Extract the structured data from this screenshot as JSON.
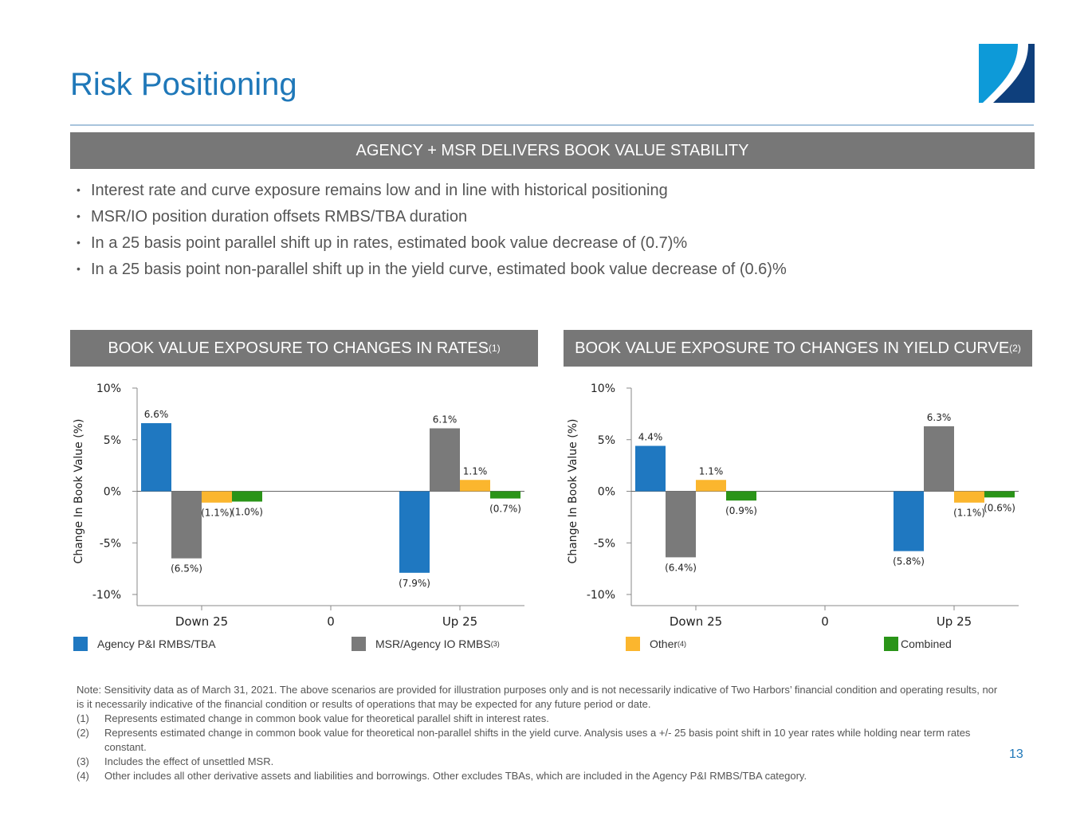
{
  "header": {
    "title": "Risk Positioning",
    "logo": "two-harbors-logo"
  },
  "banner": "AGENCY + MSR DELIVERS BOOK VALUE STABILITY",
  "bullets": [
    "Interest rate and curve exposure remains low and in line with historical positioning",
    "MSR/IO position duration offsets RMBS/TBA duration",
    "In a 25 basis point parallel shift up in rates, estimated book value decrease of (0.7)%",
    "In a 25 basis point non-parallel shift up in the yield curve, estimated book value decrease of (0.6)%"
  ],
  "legend": [
    {
      "label": "Agency P&I RMBS/TBA",
      "sup": "",
      "color": "#1f78c1"
    },
    {
      "label": "MSR/Agency IO RMBS",
      "sup": "(3)",
      "color": "#7a7a7a"
    },
    {
      "label": "Other",
      "sup": "(4)",
      "color": "#fbb62e"
    },
    {
      "label": "Combined",
      "sup": "",
      "color": "#2a9418"
    }
  ],
  "chart_data": [
    {
      "type": "bar",
      "title": "BOOK VALUE EXPOSURE TO CHANGES IN RATES",
      "title_sup": "(1)",
      "categories": [
        "Down 25",
        "0",
        "Up 25"
      ],
      "ylabel": "Change In Book Value (%)",
      "ylim": [
        -10,
        10
      ],
      "yticks": [
        "10%",
        "5%",
        "0%",
        "-5%",
        "-10%"
      ],
      "series": [
        {
          "name": "Agency P&I RMBS/TBA",
          "values": [
            6.6,
            null,
            -7.9
          ],
          "labels": [
            "6.6%",
            "",
            "(7.9%)"
          ]
        },
        {
          "name": "MSR/Agency IO RMBS",
          "values": [
            -6.5,
            null,
            6.1
          ],
          "labels": [
            "(6.5%)",
            "",
            "6.1%"
          ]
        },
        {
          "name": "Other",
          "values": [
            -1.1,
            null,
            1.1
          ],
          "labels": [
            "(1.1%)",
            "",
            "1.1%"
          ]
        },
        {
          "name": "Combined",
          "values": [
            -1.0,
            null,
            -0.7
          ],
          "labels": [
            "(1.0%)",
            "",
            "(0.7%)"
          ]
        }
      ]
    },
    {
      "type": "bar",
      "title": "BOOK VALUE EXPOSURE TO CHANGES IN YIELD CURVE",
      "title_sup": "(2)",
      "categories": [
        "Down 25",
        "0",
        "Up 25"
      ],
      "ylabel": "Change In Book Value (%)",
      "ylim": [
        -10,
        10
      ],
      "yticks": [
        "10%",
        "5%",
        "0%",
        "-5%",
        "-10%"
      ],
      "series": [
        {
          "name": "Agency P&I RMBS/TBA",
          "values": [
            4.4,
            null,
            -5.8
          ],
          "labels": [
            "4.4%",
            "",
            "(5.8%)"
          ]
        },
        {
          "name": "MSR/Agency IO RMBS",
          "values": [
            -6.4,
            null,
            6.3
          ],
          "labels": [
            "(6.4%)",
            "",
            "6.3%"
          ]
        },
        {
          "name": "Other",
          "values": [
            1.1,
            null,
            -1.1
          ],
          "labels": [
            "1.1%",
            "",
            "(1.1%)"
          ]
        },
        {
          "name": "Combined",
          "values": [
            -0.9,
            null,
            -0.6
          ],
          "labels": [
            "(0.9%)",
            "",
            "(0.6%)"
          ]
        }
      ]
    }
  ],
  "notes": {
    "intro": "Note: Sensitivity data as of March 31, 2021.  The above scenarios are provided for illustration purposes only and is not necessarily indicative of Two Harbors’ financial condition and operating results, nor is it necessarily indicative of the financial condition or results of operations that may be expected for any future period or date.",
    "footnotes": [
      {
        "n": "(1)",
        "text": "Represents estimated change in common book value for theoretical parallel shift in interest rates."
      },
      {
        "n": "(2)",
        "text": "Represents estimated change in common book value for theoretical non-parallel shifts in the yield curve. Analysis uses a +/- 25 basis point shift in 10 year rates while holding near term rates constant."
      },
      {
        "n": "(3)",
        "text": "Includes the effect of unsettled MSR."
      },
      {
        "n": "(4)",
        "text": "Other includes all other derivative assets and liabilities and borrowings. Other excludes TBAs, which are included in the Agency P&I RMBS/TBA category."
      }
    ]
  },
  "page_number": "13"
}
